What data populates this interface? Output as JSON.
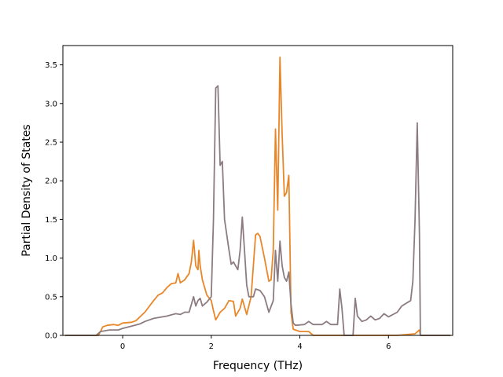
{
  "chart_data": {
    "type": "line",
    "title": "",
    "xlabel": "Frequency (THz)",
    "ylabel": "Partial Density of States",
    "xlim": [
      -1.35,
      7.45
    ],
    "ylim": [
      0,
      3.75
    ],
    "xticks": [
      0,
      2,
      4,
      6
    ],
    "yticks": [
      0.0,
      0.5,
      1.0,
      1.5,
      2.0,
      2.5,
      3.0,
      3.5
    ],
    "grid": false,
    "legend": "none",
    "colors": {
      "orange": "#e8872a",
      "mauve": "#8c7c80"
    },
    "series": [
      {
        "color": "#e8872a",
        "points": [
          [
            -1.3,
            0
          ],
          [
            -0.55,
            0
          ],
          [
            -0.5,
            0.05
          ],
          [
            -0.45,
            0.11
          ],
          [
            -0.35,
            0.13
          ],
          [
            -0.2,
            0.14
          ],
          [
            -0.1,
            0.13
          ],
          [
            0.0,
            0.16
          ],
          [
            0.2,
            0.17
          ],
          [
            0.3,
            0.19
          ],
          [
            0.5,
            0.3
          ],
          [
            0.7,
            0.45
          ],
          [
            0.8,
            0.52
          ],
          [
            0.9,
            0.55
          ],
          [
            1.0,
            0.62
          ],
          [
            1.1,
            0.67
          ],
          [
            1.2,
            0.68
          ],
          [
            1.25,
            0.8
          ],
          [
            1.3,
            0.68
          ],
          [
            1.4,
            0.72
          ],
          [
            1.5,
            0.8
          ],
          [
            1.55,
            0.95
          ],
          [
            1.6,
            1.23
          ],
          [
            1.65,
            0.9
          ],
          [
            1.7,
            0.85
          ],
          [
            1.72,
            1.1
          ],
          [
            1.75,
            0.9
          ],
          [
            1.8,
            0.72
          ],
          [
            1.9,
            0.52
          ],
          [
            2.0,
            0.45
          ],
          [
            2.05,
            0.32
          ],
          [
            2.1,
            0.2
          ],
          [
            2.2,
            0.3
          ],
          [
            2.3,
            0.35
          ],
          [
            2.4,
            0.45
          ],
          [
            2.5,
            0.44
          ],
          [
            2.55,
            0.25
          ],
          [
            2.65,
            0.35
          ],
          [
            2.7,
            0.47
          ],
          [
            2.8,
            0.27
          ],
          [
            2.9,
            0.5
          ],
          [
            3.0,
            1.3
          ],
          [
            3.05,
            1.32
          ],
          [
            3.1,
            1.28
          ],
          [
            3.2,
            1.0
          ],
          [
            3.3,
            0.7
          ],
          [
            3.35,
            0.72
          ],
          [
            3.4,
            1.1
          ],
          [
            3.45,
            2.67
          ],
          [
            3.5,
            1.62
          ],
          [
            3.55,
            3.6
          ],
          [
            3.6,
            2.6
          ],
          [
            3.65,
            1.8
          ],
          [
            3.7,
            1.85
          ],
          [
            3.75,
            2.07
          ],
          [
            3.8,
            0.3
          ],
          [
            3.85,
            0.08
          ],
          [
            4.0,
            0.05
          ],
          [
            4.2,
            0.05
          ],
          [
            4.3,
            0.0
          ],
          [
            4.8,
            0.0
          ],
          [
            5.0,
            0.0
          ],
          [
            6.2,
            0.0
          ],
          [
            6.6,
            0.02
          ],
          [
            6.7,
            0.07
          ],
          [
            6.72,
            0
          ],
          [
            7.4,
            0
          ]
        ]
      },
      {
        "color": "#8c7c80",
        "points": [
          [
            -1.3,
            0
          ],
          [
            -0.6,
            0
          ],
          [
            -0.5,
            0.05
          ],
          [
            -0.3,
            0.07
          ],
          [
            -0.1,
            0.07
          ],
          [
            0.0,
            0.09
          ],
          [
            0.2,
            0.12
          ],
          [
            0.4,
            0.15
          ],
          [
            0.5,
            0.18
          ],
          [
            0.7,
            0.22
          ],
          [
            0.9,
            0.24
          ],
          [
            1.0,
            0.25
          ],
          [
            1.2,
            0.28
          ],
          [
            1.3,
            0.27
          ],
          [
            1.4,
            0.3
          ],
          [
            1.5,
            0.3
          ],
          [
            1.55,
            0.4
          ],
          [
            1.6,
            0.5
          ],
          [
            1.65,
            0.38
          ],
          [
            1.7,
            0.45
          ],
          [
            1.75,
            0.48
          ],
          [
            1.8,
            0.38
          ],
          [
            1.9,
            0.43
          ],
          [
            2.0,
            0.5
          ],
          [
            2.05,
            1.5
          ],
          [
            2.1,
            3.2
          ],
          [
            2.15,
            3.23
          ],
          [
            2.2,
            2.2
          ],
          [
            2.25,
            2.25
          ],
          [
            2.3,
            1.5
          ],
          [
            2.4,
            1.1
          ],
          [
            2.45,
            0.92
          ],
          [
            2.5,
            0.95
          ],
          [
            2.6,
            0.85
          ],
          [
            2.65,
            1.1
          ],
          [
            2.7,
            1.53
          ],
          [
            2.75,
            1.1
          ],
          [
            2.8,
            0.65
          ],
          [
            2.85,
            0.5
          ],
          [
            2.9,
            0.5
          ],
          [
            2.95,
            0.5
          ],
          [
            3.0,
            0.6
          ],
          [
            3.1,
            0.58
          ],
          [
            3.2,
            0.5
          ],
          [
            3.3,
            0.3
          ],
          [
            3.4,
            0.45
          ],
          [
            3.45,
            1.1
          ],
          [
            3.5,
            0.7
          ],
          [
            3.55,
            1.22
          ],
          [
            3.6,
            0.9
          ],
          [
            3.65,
            0.75
          ],
          [
            3.7,
            0.7
          ],
          [
            3.75,
            0.82
          ],
          [
            3.8,
            0.4
          ],
          [
            3.85,
            0.16
          ],
          [
            3.9,
            0.13
          ],
          [
            4.1,
            0.14
          ],
          [
            4.2,
            0.18
          ],
          [
            4.3,
            0.14
          ],
          [
            4.5,
            0.14
          ],
          [
            4.6,
            0.18
          ],
          [
            4.7,
            0.14
          ],
          [
            4.85,
            0.14
          ],
          [
            4.9,
            0.6
          ],
          [
            4.95,
            0.35
          ],
          [
            5.0,
            0.0
          ],
          [
            5.2,
            0.0
          ],
          [
            5.25,
            0.48
          ],
          [
            5.3,
            0.25
          ],
          [
            5.4,
            0.18
          ],
          [
            5.5,
            0.2
          ],
          [
            5.6,
            0.25
          ],
          [
            5.7,
            0.2
          ],
          [
            5.8,
            0.22
          ],
          [
            5.9,
            0.28
          ],
          [
            6.0,
            0.24
          ],
          [
            6.2,
            0.3
          ],
          [
            6.3,
            0.38
          ],
          [
            6.5,
            0.45
          ],
          [
            6.55,
            0.7
          ],
          [
            6.6,
            1.5
          ],
          [
            6.65,
            2.75
          ],
          [
            6.7,
            1.3
          ],
          [
            6.72,
            0
          ],
          [
            7.4,
            0
          ]
        ]
      }
    ]
  }
}
